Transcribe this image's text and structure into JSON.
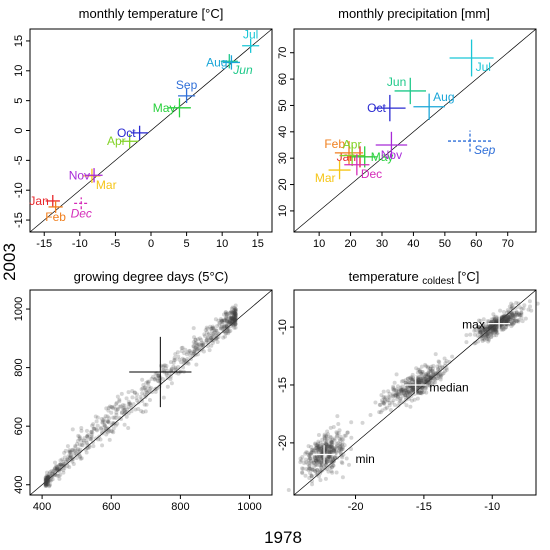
{
  "outer_labels": {
    "x": "1978",
    "y": "2003"
  },
  "chart_data": [
    {
      "id": "p1",
      "type": "scatter",
      "title": "monthly temperature [°C]",
      "xlim": [
        -17,
        17
      ],
      "ylim": [
        -17,
        17
      ],
      "x_ticks": [
        -15,
        -10,
        -5,
        0,
        5,
        10,
        15
      ],
      "y_ticks": [
        -15,
        -10,
        -5,
        0,
        5,
        10,
        15
      ],
      "diagonal": true,
      "label_anchors": {
        "left": "end",
        "right": "start",
        "middle": "middle"
      },
      "points": [
        {
          "label": "Jan",
          "x": -13.8,
          "y": -11.8,
          "xerr": 1.0,
          "yerr": 1.0,
          "color": "#e8262b",
          "label_pos": "left",
          "italic": false,
          "dashed": false
        },
        {
          "label": "Feb",
          "x": -13.4,
          "y": -12.8,
          "xerr": 1.0,
          "yerr": 1.0,
          "color": "#f07f1e",
          "label_pos": "below",
          "italic": false,
          "dashed": false
        },
        {
          "label": "Mar",
          "x": -8.3,
          "y": -7.6,
          "xerr": 1.2,
          "yerr": 1.2,
          "color": "#f5c518",
          "label_pos": "below-right",
          "italic": false,
          "dashed": false
        },
        {
          "label": "Apr",
          "x": -3.0,
          "y": -1.8,
          "xerr": 1.2,
          "yerr": 1.2,
          "color": "#82d226",
          "label_pos": "left",
          "italic": false,
          "dashed": false
        },
        {
          "label": "May",
          "x": 4.0,
          "y": 3.8,
          "xerr": 1.6,
          "yerr": 1.6,
          "color": "#29d13d",
          "label_pos": "left",
          "italic": false,
          "dashed": false
        },
        {
          "label": "Jun",
          "x": 11.0,
          "y": 11.6,
          "xerr": 1.2,
          "yerr": 1.2,
          "color": "#1fc98a",
          "label_pos": "below-right",
          "italic": true,
          "dashed": false
        },
        {
          "label": "Jul",
          "x": 14.0,
          "y": 14.2,
          "xerr": 1.2,
          "yerr": 1.2,
          "color": "#1ac6d6",
          "label_pos": "above",
          "italic": false,
          "dashed": false
        },
        {
          "label": "Aug",
          "x": 11.3,
          "y": 11.4,
          "xerr": 1.2,
          "yerr": 1.2,
          "color": "#1aa6d8",
          "label_pos": "left",
          "italic": false,
          "dashed": false
        },
        {
          "label": "Sep",
          "x": 5.0,
          "y": 5.8,
          "xerr": 1.2,
          "yerr": 1.2,
          "color": "#2f6fd8",
          "label_pos": "above",
          "italic": false,
          "dashed": false
        },
        {
          "label": "Oct",
          "x": -1.6,
          "y": -0.4,
          "xerr": 1.2,
          "yerr": 1.2,
          "color": "#2a2ad1",
          "label_pos": "left",
          "italic": false,
          "dashed": false
        },
        {
          "label": "Nov",
          "x": -8.0,
          "y": -7.5,
          "xerr": 1.2,
          "yerr": 1.2,
          "color": "#a82bd8",
          "label_pos": "left",
          "italic": false,
          "dashed": false
        },
        {
          "label": "Dec",
          "x": -9.8,
          "y": -12.2,
          "xerr": 1.0,
          "yerr": 1.0,
          "color": "#d42bb8",
          "label_pos": "below",
          "italic": true,
          "dashed": true
        }
      ]
    },
    {
      "id": "p2",
      "type": "scatter",
      "title": "monthly precipitation [mm]",
      "xlim": [
        2,
        79
      ],
      "ylim": [
        2,
        79
      ],
      "x_ticks": [
        10,
        20,
        30,
        40,
        50,
        60,
        70
      ],
      "y_ticks": [
        10,
        20,
        30,
        40,
        50,
        60,
        70
      ],
      "diagonal": true,
      "label_anchors": {
        "left": "end",
        "right": "start",
        "middle": "middle"
      },
      "points": [
        {
          "label": "Jan",
          "x": 23.0,
          "y": 30.5,
          "xerr": 4.0,
          "yerr": 4.0,
          "color": "#e8262b",
          "label_pos": "left",
          "italic": false,
          "dashed": false
        },
        {
          "label": "Feb",
          "x": 19.5,
          "y": 32.0,
          "xerr": 4.5,
          "yerr": 4.5,
          "color": "#f07f1e",
          "label_pos": "above-left",
          "italic": false,
          "dashed": false
        },
        {
          "label": "Mar",
          "x": 16.5,
          "y": 25.5,
          "xerr": 3.5,
          "yerr": 3.5,
          "color": "#f5c518",
          "label_pos": "below-left",
          "italic": false,
          "dashed": false
        },
        {
          "label": "Apr",
          "x": 20.5,
          "y": 31.0,
          "xerr": 4.0,
          "yerr": 4.0,
          "color": "#82d226",
          "label_pos": "above",
          "italic": false,
          "dashed": false
        },
        {
          "label": "May",
          "x": 24.5,
          "y": 30.5,
          "xerr": 4.0,
          "yerr": 4.0,
          "color": "#29d13d",
          "label_pos": "right",
          "italic": false,
          "dashed": false
        },
        {
          "label": "Jun",
          "x": 39.0,
          "y": 55.5,
          "xerr": 5.0,
          "yerr": 5.0,
          "color": "#1fc98a",
          "label_pos": "above-left",
          "italic": false,
          "dashed": false
        },
        {
          "label": "Jul",
          "x": 58.5,
          "y": 68.0,
          "xerr": 7.0,
          "yerr": 7.0,
          "color": "#1ac6d6",
          "label_pos": "below-right",
          "italic": false,
          "dashed": false
        },
        {
          "label": "Aug",
          "x": 45.0,
          "y": 49.5,
          "xerr": 5.0,
          "yerr": 5.0,
          "color": "#1aa6d8",
          "label_pos": "above-right",
          "italic": false,
          "dashed": false
        },
        {
          "label": "Sep",
          "x": 58.0,
          "y": 36.5,
          "xerr": 7.0,
          "yerr": 4.0,
          "color": "#2f6fd8",
          "label_pos": "below-right",
          "italic": true,
          "dashed": true
        },
        {
          "label": "Oct",
          "x": 32.5,
          "y": 49.0,
          "xerr": 5.0,
          "yerr": 5.0,
          "color": "#2a2ad1",
          "label_pos": "left",
          "italic": false,
          "dashed": false
        },
        {
          "label": "Nov",
          "x": 33.0,
          "y": 35.0,
          "xerr": 5.0,
          "yerr": 5.0,
          "color": "#a82bd8",
          "label_pos": "below",
          "italic": false,
          "dashed": false
        },
        {
          "label": "Dec",
          "x": 22.0,
          "y": 27.5,
          "xerr": 4.0,
          "yerr": 4.0,
          "color": "#d42bb8",
          "label_pos": "below-right",
          "italic": false,
          "dashed": false
        }
      ]
    },
    {
      "id": "p3",
      "type": "scatter",
      "title": "growing degree days (5°C)",
      "xlim": [
        365,
        1065
      ],
      "ylim": [
        365,
        1065
      ],
      "x_ticks": [
        400,
        600,
        800,
        1000
      ],
      "y_ticks": [
        400,
        600,
        800,
        1000
      ],
      "diagonal": true,
      "cloud": {
        "color": "#404040",
        "point_count": 700,
        "x_range": [
          410,
          960
        ],
        "along_diagonal": true,
        "segments": [
          {
            "x": 410,
            "offset": 0,
            "spread": 10
          },
          {
            "x": 500,
            "offset": 20,
            "spread": 22
          },
          {
            "x": 600,
            "offset": 25,
            "spread": 30
          },
          {
            "x": 700,
            "offset": 20,
            "spread": 28
          },
          {
            "x": 800,
            "offset": 20,
            "spread": 25
          },
          {
            "x": 900,
            "offset": 20,
            "spread": 22
          },
          {
            "x": 960,
            "offset": 15,
            "spread": 18
          }
        ]
      },
      "crosshair": {
        "x": 742,
        "y": 785,
        "xerr": 90,
        "yerr": 120,
        "color": "#000000"
      }
    },
    {
      "id": "p4",
      "type": "scatter",
      "title_main": "temperature ",
      "title_sub": "coldest",
      "title_unit": " [°C]",
      "xlim": [
        -24.5,
        -6.8
      ],
      "ylim": [
        -24.5,
        -6.8
      ],
      "x_ticks": [
        -20,
        -15,
        -10
      ],
      "y_ticks": [
        -20,
        -15,
        -10
      ],
      "diagonal": true,
      "clusters": [
        {
          "name": "min",
          "x": -22.3,
          "y": -21.0,
          "x_spread": 0.8,
          "y_spread": 1.2,
          "count": 360,
          "crosshair_xerr": 0.8,
          "crosshair_yerr": 0.8,
          "label_x": -20.0,
          "label_y": -21.4
        },
        {
          "name": "median",
          "x": -15.6,
          "y": -15.0,
          "x_spread": 1.1,
          "y_spread": 0.75,
          "count": 380,
          "crosshair_xerr": 0.8,
          "crosshair_yerr": 0.8,
          "label_x": -14.6,
          "label_y": -15.2
        },
        {
          "name": "max",
          "x": -9.5,
          "y": -9.7,
          "x_spread": 0.9,
          "y_spread": 0.6,
          "count": 380,
          "crosshair_xerr": 0.8,
          "crosshair_yerr": 0.8,
          "label_x": -12.2,
          "label_y": -9.8
        }
      ],
      "cloud_color": "#404040",
      "crosshair_color": "#ffffff"
    }
  ]
}
